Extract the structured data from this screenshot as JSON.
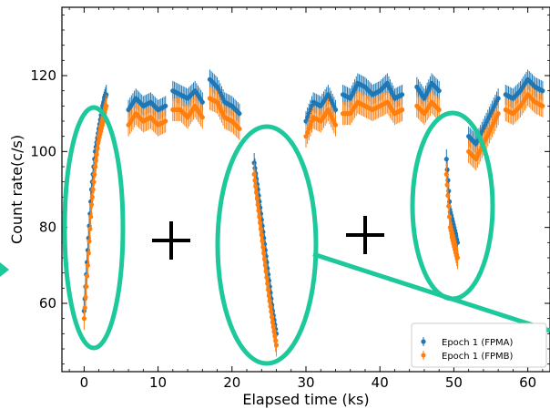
{
  "chart_data": {
    "type": "scatter",
    "xlabel": "Elapsed time (ks)",
    "ylabel": "Count rate(c/s)",
    "xlim": [
      -3,
      63
    ],
    "ylim": [
      42,
      138
    ],
    "x_ticks": [
      0,
      10,
      20,
      30,
      40,
      50,
      60
    ],
    "y_ticks": [
      60,
      80,
      100,
      120
    ],
    "grid": false,
    "legend_position": "bottom-right",
    "colors": {
      "FPMA": "#1f77b4",
      "FPMB": "#ff7f0e",
      "highlight": "#1dc99a"
    },
    "series": [
      {
        "name": "Epoch 1 (FPMA)",
        "segments": [
          {
            "t": [
              0.0,
              0.5,
              1.0,
              1.5,
              2.0,
              2.5,
              3.0
            ],
            "y": [
              58,
              74,
              90,
              100,
              106,
              112,
              115
            ]
          },
          {
            "t": [
              6,
              7,
              8,
              9,
              10,
              11
            ],
            "y": [
              111,
              114,
              112,
              113,
              111,
              112
            ]
          },
          {
            "t": [
              12,
              13,
              14,
              15,
              16
            ],
            "y": [
              116,
              115,
              114,
              116,
              113
            ]
          },
          {
            "t": [
              17,
              18,
              19,
              20,
              21
            ],
            "y": [
              119,
              117,
              113,
              112,
              110
            ]
          },
          {
            "t": [
              23.0,
              23.5,
              24.0,
              24.5,
              25.0,
              25.5,
              26.0
            ],
            "y": [
              97,
              90,
              82,
              74,
              66,
              58,
              52
            ]
          },
          {
            "t": [
              30,
              31,
              32,
              33,
              34
            ],
            "y": [
              108,
              113,
              112,
              115,
              111
            ]
          },
          {
            "t": [
              35,
              36,
              37,
              38,
              39,
              40,
              41,
              42,
              43
            ],
            "y": [
              115,
              114,
              118,
              117,
              115,
              116,
              118,
              114,
              115
            ]
          },
          {
            "t": [
              45,
              46,
              47,
              48
            ],
            "y": [
              117,
              114,
              118,
              116
            ]
          },
          {
            "t": [
              49.0,
              49.5,
              50.0,
              50.5
            ],
            "y": [
              98,
              84,
              80,
              76
            ]
          },
          {
            "t": [
              52,
              53,
              54,
              55,
              56
            ],
            "y": [
              104,
              102,
              106,
              110,
              114
            ]
          },
          {
            "t": [
              57,
              58,
              59,
              60,
              61,
              62
            ],
            "y": [
              115,
              114,
              116,
              119,
              117,
              116
            ]
          }
        ]
      },
      {
        "name": "Epoch 1 (FPMB)",
        "segments": [
          {
            "t": [
              0.0,
              0.5,
              1.0,
              1.5,
              2.0,
              2.5,
              3.0
            ],
            "y": [
              56,
              70,
              86,
              96,
              104,
              108,
              112
            ]
          },
          {
            "t": [
              6,
              7,
              8,
              9,
              10,
              11
            ],
            "y": [
              107,
              110,
              108,
              109,
              107,
              108
            ]
          },
          {
            "t": [
              12,
              13,
              14,
              15,
              16
            ],
            "y": [
              111,
              111,
              109,
              112,
              109
            ]
          },
          {
            "t": [
              17,
              18,
              19,
              20,
              21
            ],
            "y": [
              114,
              113,
              109,
              108,
              106
            ]
          },
          {
            "t": [
              23.0,
              23.5,
              24.0,
              24.5,
              25.0,
              25.5,
              26.0
            ],
            "y": [
              94,
              86,
              78,
              70,
              62,
              55,
              49
            ]
          },
          {
            "t": [
              30,
              31,
              32,
              33,
              34
            ],
            "y": [
              104,
              109,
              108,
              111,
              107
            ]
          },
          {
            "t": [
              35,
              36,
              37,
              38,
              39,
              40,
              41,
              42,
              43
            ],
            "y": [
              110,
              110,
              113,
              112,
              111,
              112,
              113,
              110,
              111
            ]
          },
          {
            "t": [
              45,
              46,
              47,
              48
            ],
            "y": [
              112,
              110,
              113,
              111
            ]
          },
          {
            "t": [
              49.0,
              49.5,
              50.0,
              50.5
            ],
            "y": [
              94,
              80,
              76,
              72
            ]
          },
          {
            "t": [
              52,
              53,
              54,
              55,
              56
            ],
            "y": [
              100,
              98,
              102,
              106,
              110
            ]
          },
          {
            "t": [
              57,
              58,
              59,
              60,
              61,
              62
            ],
            "y": [
              111,
              110,
              112,
              115,
              113,
              112
            ]
          }
        ]
      }
    ],
    "annotations": {
      "plus_signs": 2,
      "highlight_ellipses": 3
    }
  }
}
